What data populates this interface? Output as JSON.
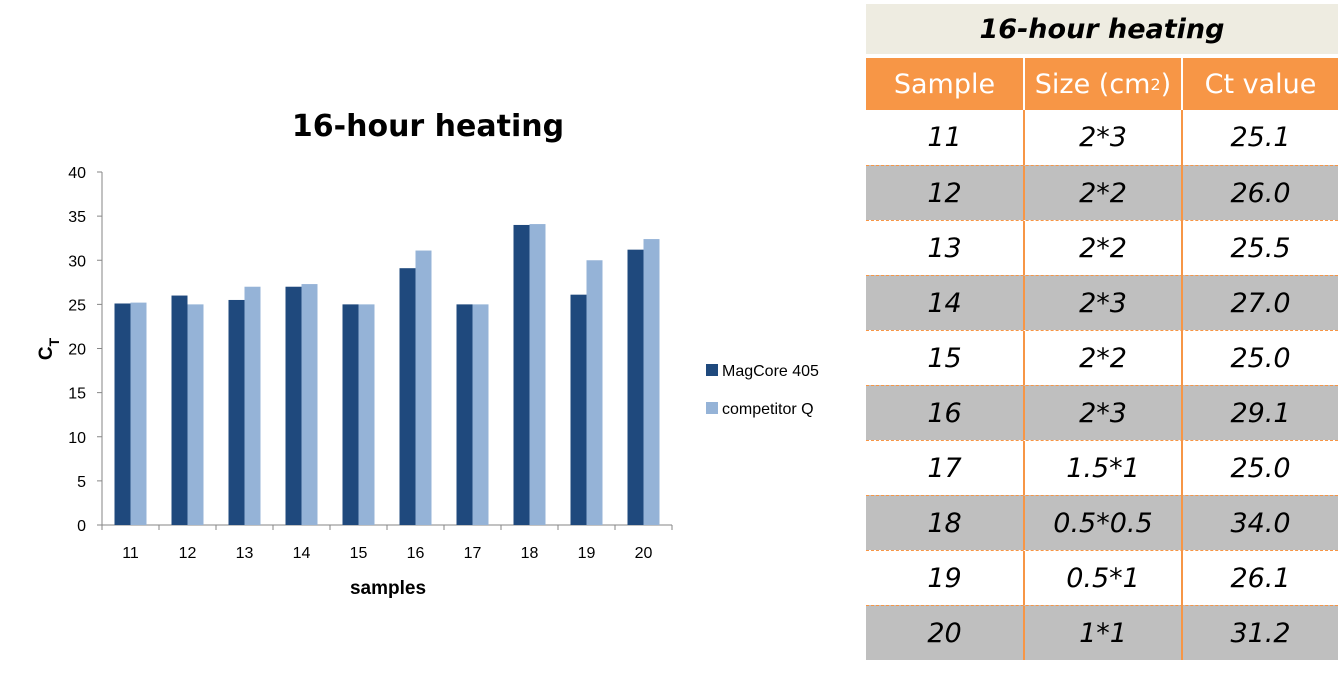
{
  "chart_data": {
    "type": "bar",
    "title": "16-hour heating",
    "xlabel": "samples",
    "ylabel_main": "C",
    "ylabel_sub": "T",
    "ylim": [
      0,
      40
    ],
    "yticks": [
      "0",
      "5",
      "10",
      "15",
      "20",
      "25",
      "30",
      "35",
      "40"
    ],
    "categories": [
      "11",
      "12",
      "13",
      "14",
      "15",
      "16",
      "17",
      "18",
      "19",
      "20"
    ],
    "grid": false,
    "legend_position": "right",
    "series": [
      {
        "name": "MagCore 405",
        "color": "#1f497d",
        "values": [
          25.1,
          26.0,
          25.5,
          27.0,
          25.0,
          29.1,
          25.0,
          34.0,
          26.1,
          31.2
        ]
      },
      {
        "name": "competitor Q",
        "color": "#95b3d7",
        "values": [
          25.2,
          25.0,
          27.0,
          27.3,
          25.0,
          31.1,
          25.0,
          34.1,
          30.0,
          32.4
        ]
      }
    ]
  },
  "table": {
    "title": "16-hour heating",
    "headers": {
      "sample": "Sample",
      "size_main": "Size (cm",
      "size_sup": "2",
      "size_tail": ")",
      "ct": "Ct value"
    },
    "rows": [
      {
        "sample": "11",
        "size": "2*3",
        "ct": "25.1"
      },
      {
        "sample": "12",
        "size": "2*2",
        "ct": "26.0"
      },
      {
        "sample": "13",
        "size": "2*2",
        "ct": "25.5"
      },
      {
        "sample": "14",
        "size": "2*3",
        "ct": "27.0"
      },
      {
        "sample": "15",
        "size": "2*2",
        "ct": "25.0"
      },
      {
        "sample": "16",
        "size": "2*3",
        "ct": "29.1"
      },
      {
        "sample": "17",
        "size": "1.5*1",
        "ct": "25.0"
      },
      {
        "sample": "18",
        "size": "0.5*0.5",
        "ct": "34.0"
      },
      {
        "sample": "19",
        "size": "0.5*1",
        "ct": "26.1"
      },
      {
        "sample": "20",
        "size": "1*1",
        "ct": "31.2"
      }
    ],
    "colors": {
      "header": "#f79646",
      "title_bg": "#eeece1",
      "band": "#bfbfbf"
    }
  }
}
